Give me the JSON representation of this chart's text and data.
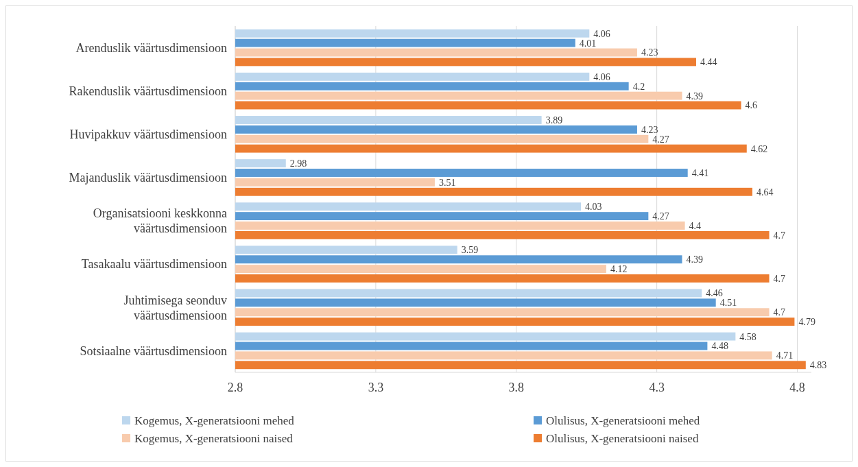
{
  "chart_data": {
    "type": "bar",
    "orientation": "horizontal",
    "categories": [
      "Arenduslik väärtusdimensioon",
      "Rakenduslik väärtusdimensioon",
      "Huvipakkuv väärtusdimensioon",
      "Majanduslik väärtusdimensioon",
      "Organisatsiooni keskkonna väärtusdimensioon",
      "Tasakaalu väärtusdimensioon",
      "Juhtimisega seonduv väärtusdimensioon",
      "Sotsiaalne väärtusdimensioon"
    ],
    "series": [
      {
        "name": "Kogemus, X-generatsiooni mehed",
        "color": "#bdd7ee",
        "values": [
          4.06,
          4.06,
          3.89,
          2.98,
          4.03,
          3.59,
          4.46,
          4.58
        ]
      },
      {
        "name": "Olulisus, X-generatsiooni mehed",
        "color": "#5b9bd5",
        "values": [
          4.01,
          4.2,
          4.23,
          4.41,
          4.27,
          4.39,
          4.51,
          4.48
        ]
      },
      {
        "name": "Kogemus, X-generatsiooni naised",
        "color": "#f8cbad",
        "values": [
          4.23,
          4.39,
          4.27,
          3.51,
          4.4,
          4.12,
          4.7,
          4.71
        ]
      },
      {
        "name": "Olulisus, X-generatsiooni naised",
        "color": "#ed7d31",
        "values": [
          4.44,
          4.6,
          4.62,
          4.64,
          4.7,
          4.7,
          4.79,
          4.83
        ]
      }
    ],
    "xlim": [
      2.8,
      4.85
    ],
    "xticks": [
      2.8,
      3.3,
      3.8,
      4.3,
      4.8
    ],
    "grid": "x",
    "data_labels": true,
    "legend": "bottom"
  }
}
